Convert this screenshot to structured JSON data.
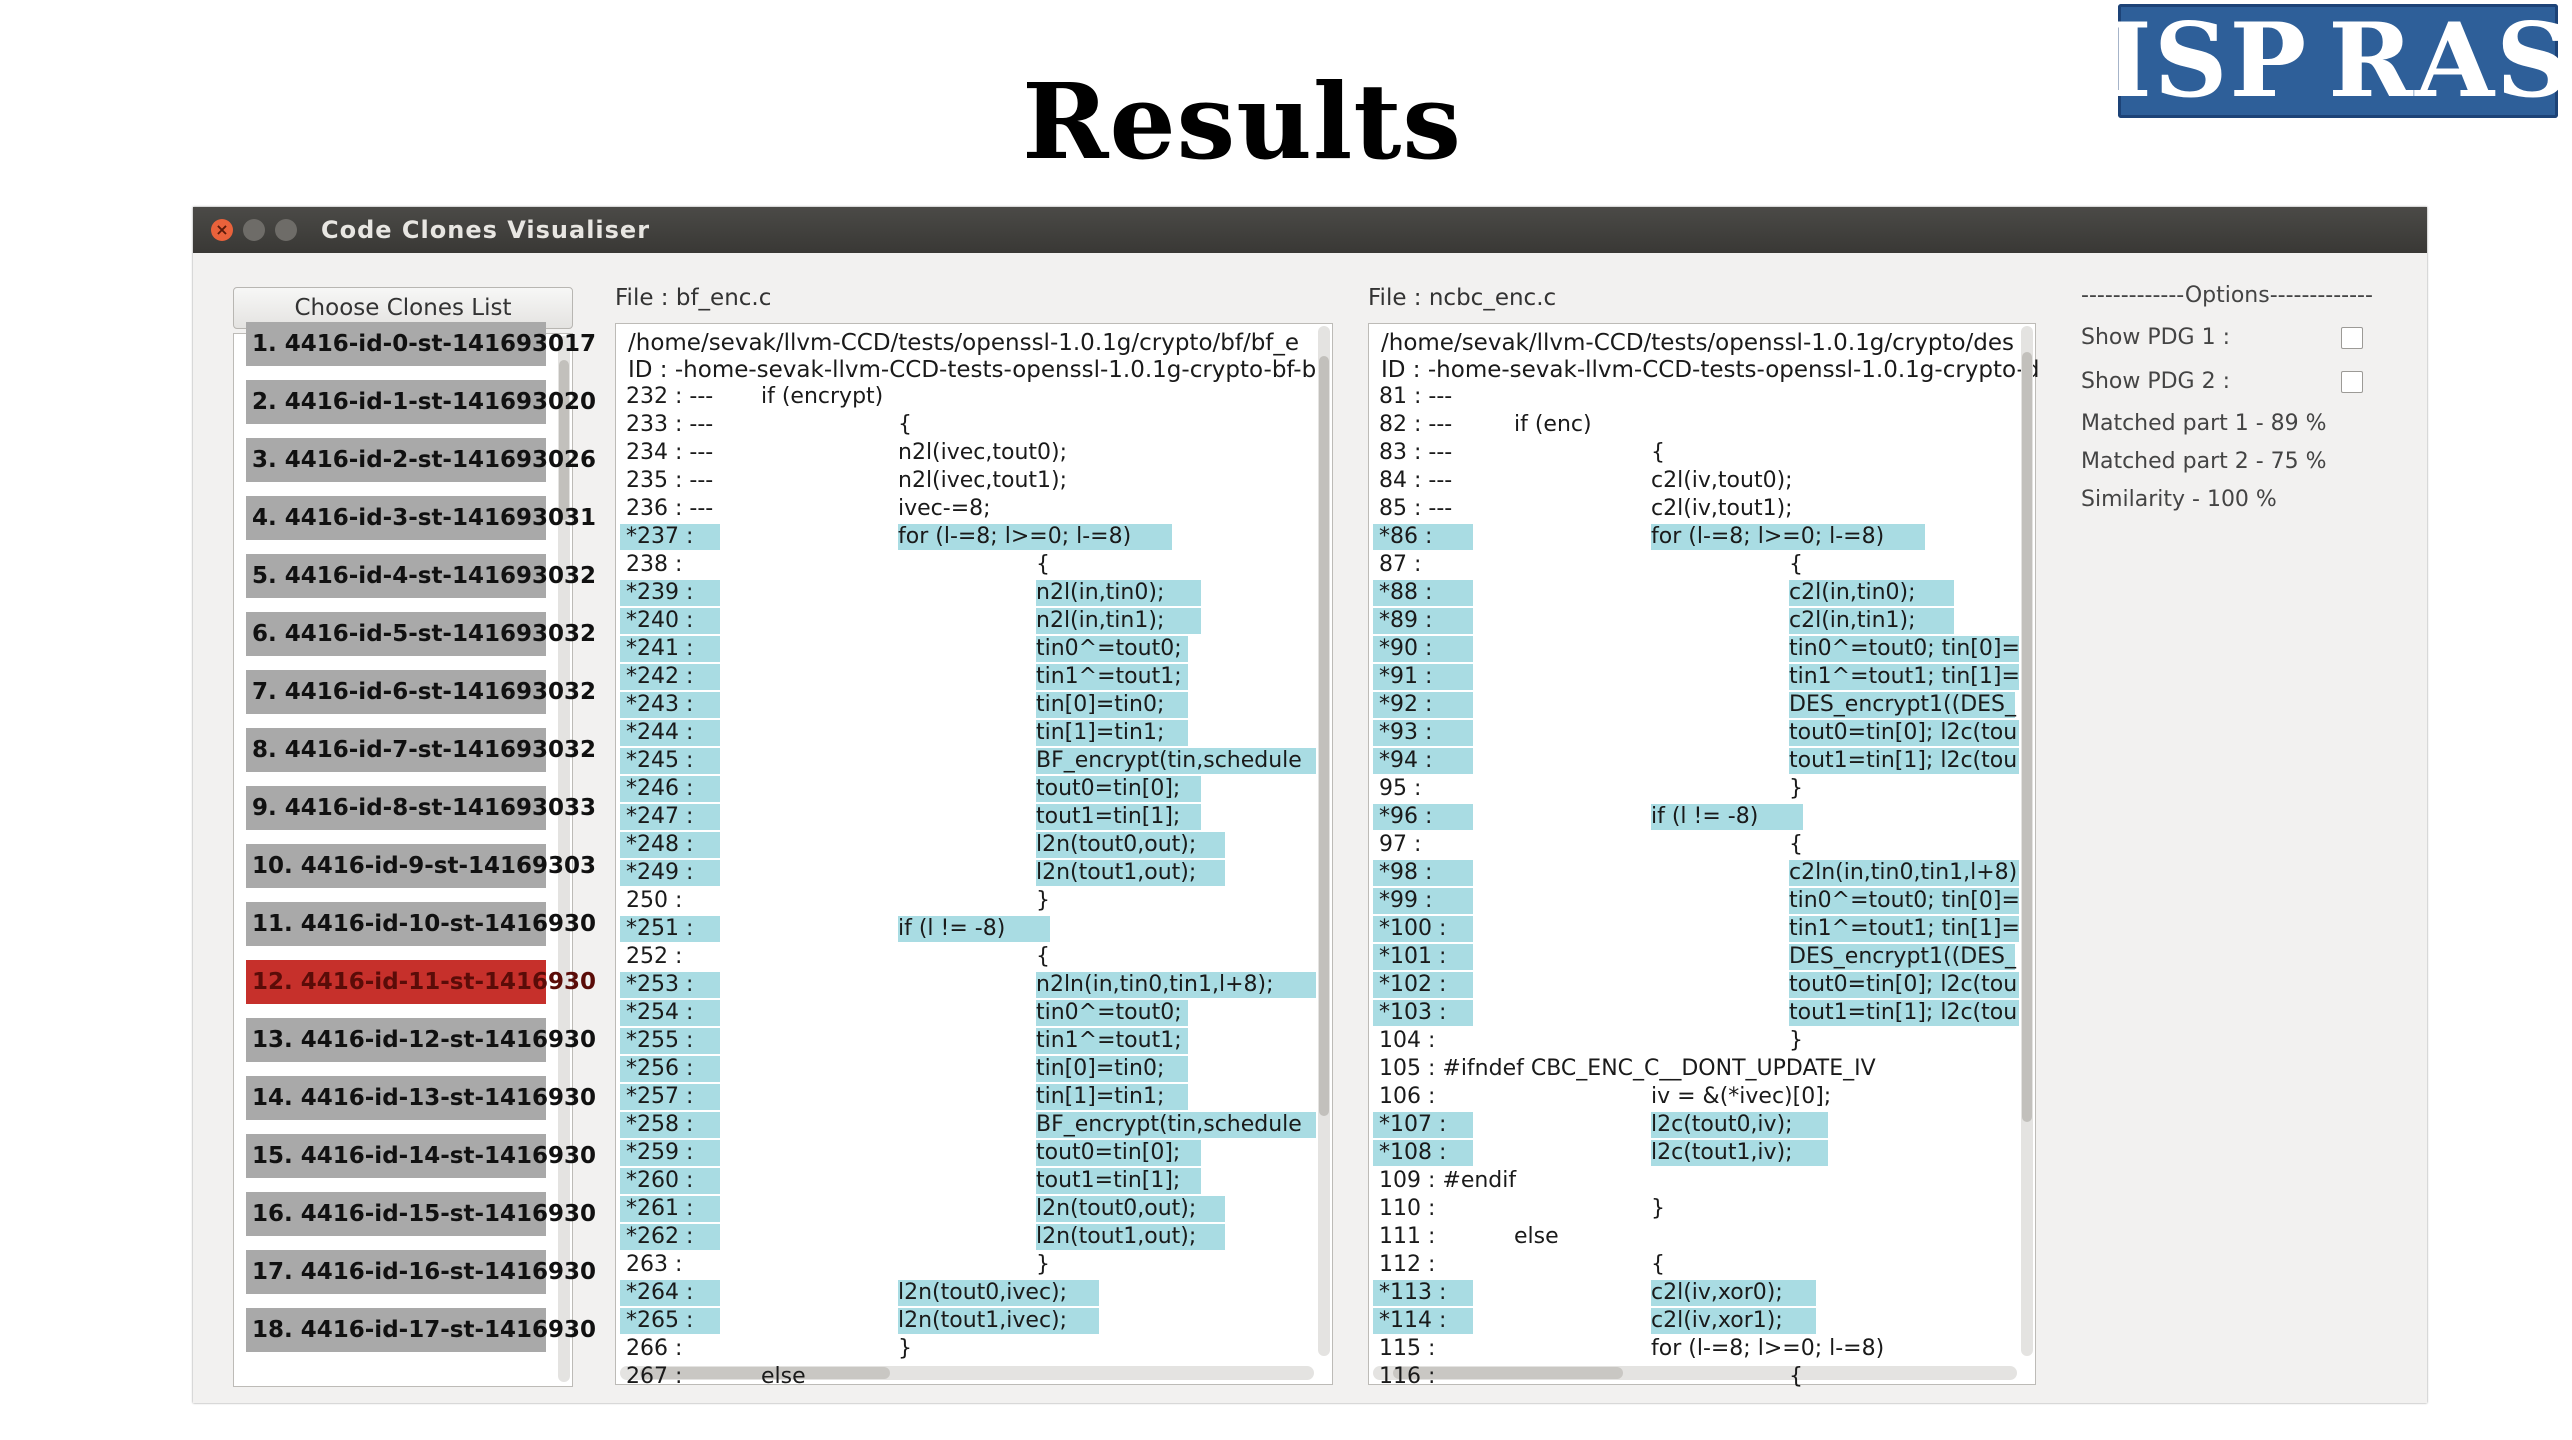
{
  "slide": {
    "title": "Results",
    "logo": [
      "ISP",
      "RAS"
    ]
  },
  "window": {
    "title": "Code Clones Visualiser"
  },
  "left_panel": {
    "choose_button": "Choose Clones List",
    "items": [
      "1. 4416-id-0-st-141693017 ",
      "2. 4416-id-1-st-141693020 ",
      "3. 4416-id-2-st-141693026 ",
      "4. 4416-id-3-st-141693031 ",
      "5. 4416-id-4-st-141693032 ",
      "6. 4416-id-5-st-141693032 ",
      "7. 4416-id-6-st-141693032 ",
      "8. 4416-id-7-st-141693032 ",
      "9. 4416-id-8-st-141693033 ",
      "10. 4416-id-9-st-14169303 ",
      "11. 4416-id-10-st-1416930 ",
      "12. 4416-id-11-st-1416930 ",
      "13. 4416-id-12-st-1416930 ",
      "14. 4416-id-13-st-1416930 ",
      "15. 4416-id-14-st-1416930 ",
      "16. 4416-id-15-st-1416930 ",
      "17. 4416-id-16-st-1416930 ",
      "18. 4416-id-17-st-1416930 "
    ],
    "selected_index": 11
  },
  "file1": {
    "label": "File : bf_enc.c",
    "path": "/home/sevak/llvm-CCD/tests/openssl-1.0.1g/crypto/bf/bf_e",
    "id": "ID : -home-sevak-llvm-CCD-tests-openssl-1.0.1g-crypto-bf-b",
    "lines": [
      {
        "n": "232 : ---",
        "t": "if (encrypt)",
        "i": 1,
        "h": false
      },
      {
        "n": "233 : ---",
        "t": "{",
        "i": 2,
        "h": false
      },
      {
        "n": "234 : ---",
        "t": "n2l(ivec,tout0);",
        "i": 2,
        "h": false
      },
      {
        "n": "235 : ---",
        "t": "n2l(ivec,tout1);",
        "i": 2,
        "h": false
      },
      {
        "n": "236 : ---",
        "t": "ivec-=8;",
        "i": 2,
        "h": false
      },
      {
        "n": "*237 :",
        "t": "for (l-=8; l>=0; l-=8)",
        "i": 2,
        "h": true
      },
      {
        "n": "238 :",
        "t": "{",
        "i": 3,
        "h": false
      },
      {
        "n": "*239 :",
        "t": "n2l(in,tin0);",
        "i": 3,
        "h": true
      },
      {
        "n": "*240 :",
        "t": "n2l(in,tin1);",
        "i": 3,
        "h": true
      },
      {
        "n": "*241 :",
        "t": "tin0^=tout0;",
        "i": 3,
        "h": true
      },
      {
        "n": "*242 :",
        "t": "tin1^=tout1;",
        "i": 3,
        "h": true
      },
      {
        "n": "*243 :",
        "t": "tin[0]=tin0;",
        "i": 3,
        "h": true
      },
      {
        "n": "*244 :",
        "t": "tin[1]=tin1;",
        "i": 3,
        "h": true
      },
      {
        "n": "*245 :",
        "t": "BF_encrypt(tin,schedule",
        "i": 3,
        "h": true
      },
      {
        "n": "*246 :",
        "t": "tout0=tin[0];",
        "i": 3,
        "h": true
      },
      {
        "n": "*247 :",
        "t": "tout1=tin[1];",
        "i": 3,
        "h": true
      },
      {
        "n": "*248 :",
        "t": "l2n(tout0,out);",
        "i": 3,
        "h": true
      },
      {
        "n": "*249 :",
        "t": "l2n(tout1,out);",
        "i": 3,
        "h": true
      },
      {
        "n": "250 :",
        "t": "}",
        "i": 3,
        "h": false
      },
      {
        "n": "*251 :",
        "t": "if (l != -8)",
        "i": 2,
        "h": true
      },
      {
        "n": "252 :",
        "t": "{",
        "i": 3,
        "h": false
      },
      {
        "n": "*253 :",
        "t": "n2ln(in,tin0,tin1,l+8);",
        "i": 3,
        "h": true
      },
      {
        "n": "*254 :",
        "t": "tin0^=tout0;",
        "i": 3,
        "h": true
      },
      {
        "n": "*255 :",
        "t": "tin1^=tout1;",
        "i": 3,
        "h": true
      },
      {
        "n": "*256 :",
        "t": "tin[0]=tin0;",
        "i": 3,
        "h": true
      },
      {
        "n": "*257 :",
        "t": "tin[1]=tin1;",
        "i": 3,
        "h": true
      },
      {
        "n": "*258 :",
        "t": "BF_encrypt(tin,schedule",
        "i": 3,
        "h": true
      },
      {
        "n": "*259 :",
        "t": "tout0=tin[0];",
        "i": 3,
        "h": true
      },
      {
        "n": "*260 :",
        "t": "tout1=tin[1];",
        "i": 3,
        "h": true
      },
      {
        "n": "*261 :",
        "t": "l2n(tout0,out);",
        "i": 3,
        "h": true
      },
      {
        "n": "*262 :",
        "t": "l2n(tout1,out);",
        "i": 3,
        "h": true
      },
      {
        "n": "263 :",
        "t": "}",
        "i": 3,
        "h": false
      },
      {
        "n": "*264 :",
        "t": "l2n(tout0,ivec);",
        "i": 2,
        "h": true
      },
      {
        "n": "*265 :",
        "t": "l2n(tout1,ivec);",
        "i": 2,
        "h": true
      },
      {
        "n": "266 :",
        "t": "}",
        "i": 2,
        "h": false
      },
      {
        "n": "267 :",
        "t": "else",
        "i": 1,
        "h": false
      }
    ]
  },
  "file2": {
    "label": "File : ncbc_enc.c",
    "path": "/home/sevak/llvm-CCD/tests/openssl-1.0.1g/crypto/des",
    "id": "ID : -home-sevak-llvm-CCD-tests-openssl-1.0.1g-crypto-d",
    "lines": [
      {
        "n": "81 : ---",
        "t": "",
        "i": 1,
        "h": false
      },
      {
        "n": "82 : ---",
        "t": "if (enc)",
        "i": 1,
        "h": false
      },
      {
        "n": "83 : ---",
        "t": "{",
        "i": 2,
        "h": false
      },
      {
        "n": "84 : ---",
        "t": "c2l(iv,tout0);",
        "i": 2,
        "h": false
      },
      {
        "n": "85 : ---",
        "t": "c2l(iv,tout1);",
        "i": 2,
        "h": false
      },
      {
        "n": "*86 :",
        "t": "for (l-=8; l>=0; l-=8)",
        "i": 2,
        "h": true
      },
      {
        "n": "87 :",
        "t": "{",
        "i": 3,
        "h": false
      },
      {
        "n": "*88 :",
        "t": "c2l(in,tin0);",
        "i": 3,
        "h": true
      },
      {
        "n": "*89 :",
        "t": "c2l(in,tin1);",
        "i": 3,
        "h": true
      },
      {
        "n": "*90 :",
        "t": "tin0^=tout0; tin[0]=",
        "i": 3,
        "h": true
      },
      {
        "n": "*91 :",
        "t": "tin1^=tout1; tin[1]=",
        "i": 3,
        "h": true
      },
      {
        "n": "*92 :",
        "t": "DES_encrypt1((DES_",
        "i": 3,
        "h": true
      },
      {
        "n": "*93 :",
        "t": "tout0=tin[0]; l2c(tou",
        "i": 3,
        "h": true
      },
      {
        "n": "*94 :",
        "t": "tout1=tin[1]; l2c(tou",
        "i": 3,
        "h": true
      },
      {
        "n": "95 :",
        "t": "}",
        "i": 3,
        "h": false
      },
      {
        "n": "*96 :",
        "t": "if (l != -8)",
        "i": 2,
        "h": true
      },
      {
        "n": "97 :",
        "t": "{",
        "i": 3,
        "h": false
      },
      {
        "n": "*98 :",
        "t": "c2ln(in,tin0,tin1,l+8)",
        "i": 3,
        "h": true
      },
      {
        "n": "*99 :",
        "t": "tin0^=tout0; tin[0]=",
        "i": 3,
        "h": true
      },
      {
        "n": "*100 :",
        "t": "tin1^=tout1; tin[1]=",
        "i": 3,
        "h": true
      },
      {
        "n": "*101 :",
        "t": "DES_encrypt1((DES_",
        "i": 3,
        "h": true
      },
      {
        "n": "*102 :",
        "t": "tout0=tin[0]; l2c(tou",
        "i": 3,
        "h": true
      },
      {
        "n": "*103 :",
        "t": "tout1=tin[1]; l2c(tou",
        "i": 3,
        "h": true
      },
      {
        "n": "104 :",
        "t": "}",
        "i": 3,
        "h": false
      },
      {
        "n": "105 : #ifndef CBC_ENC_C__DONT_UPDATE_IV",
        "t": "",
        "i": 0,
        "h": false
      },
      {
        "n": "106 :",
        "t": "iv = &(*ivec)[0];",
        "i": 2,
        "h": false
      },
      {
        "n": "*107 :",
        "t": "l2c(tout0,iv);",
        "i": 2,
        "h": true
      },
      {
        "n": "*108 :",
        "t": "l2c(tout1,iv);",
        "i": 2,
        "h": true
      },
      {
        "n": "109 : #endif",
        "t": "",
        "i": 0,
        "h": false
      },
      {
        "n": "110 :",
        "t": "}",
        "i": 2,
        "h": false
      },
      {
        "n": "111 :",
        "t": "else",
        "i": 1,
        "h": false
      },
      {
        "n": "112 :",
        "t": "{",
        "i": 2,
        "h": false
      },
      {
        "n": "*113 :",
        "t": "c2l(iv,xor0);",
        "i": 2,
        "h": true
      },
      {
        "n": "*114 :",
        "t": "c2l(iv,xor1);",
        "i": 2,
        "h": true
      },
      {
        "n": "115 :",
        "t": "for (l-=8; l>=0; l-=8)",
        "i": 2,
        "h": false
      },
      {
        "n": "116 :",
        "t": "{",
        "i": 3,
        "h": false
      }
    ]
  },
  "options": {
    "title": "-------------Options-------------",
    "show_pdg1": "Show PDG 1 :",
    "show_pdg2": "Show PDG 2 :",
    "matched1": "Matched part 1 - 89 %",
    "matched2": "Matched part 2 - 75 %",
    "similarity": "Similarity - 100 %",
    "pdg1_checked": false,
    "pdg2_checked": false
  },
  "colors": {
    "highlight": "#a9dce3",
    "selected": "#c6302b",
    "item": "#a9a9a9",
    "titlebar": "#3c3b37"
  }
}
